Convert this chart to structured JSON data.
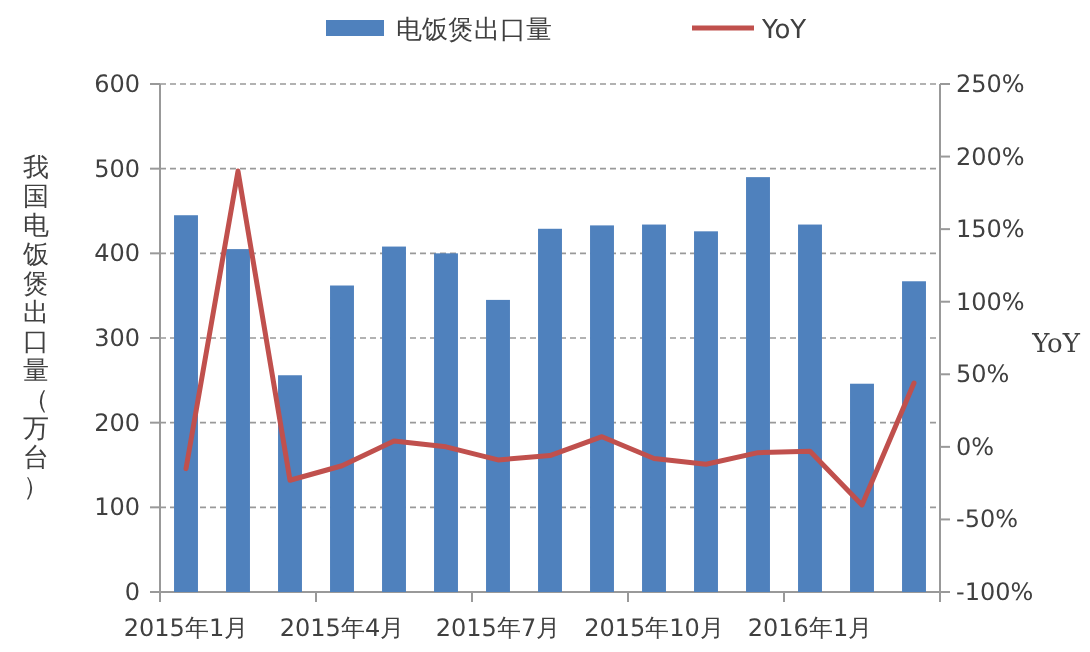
{
  "chart_data": {
    "type": "bar",
    "categories": [
      "2015年1月",
      null,
      null,
      "2015年4月",
      null,
      null,
      "2015年7月",
      null,
      null,
      "2015年10月",
      null,
      null,
      "2016年1月",
      null,
      null
    ],
    "series": [
      {
        "name": "电饭煲出口量",
        "color": "#4f81bd",
        "values": [
          445,
          405,
          256,
          362,
          408,
          400,
          345,
          429,
          433,
          434,
          426,
          490,
          434,
          246,
          367
        ]
      },
      {
        "name": "YoY",
        "type": "line",
        "axis": "y2",
        "color": "#c0504d",
        "values": [
          -15,
          190,
          -23,
          -13,
          4,
          0,
          -9,
          -6,
          7,
          -8,
          -12,
          -4,
          -3,
          -40,
          44
        ]
      }
    ],
    "ylabel": "我国电饭煲出口量（万台）",
    "y2label": "YoY",
    "ylim": [
      0,
      600
    ],
    "yticks": [
      0,
      100,
      200,
      300,
      400,
      500,
      600
    ],
    "y2lim": [
      -100,
      250
    ],
    "y2ticks": [
      {
        "value": -100,
        "label": "-100%"
      },
      {
        "value": -50,
        "label": "-50%"
      },
      {
        "value": 0,
        "label": "0%"
      },
      {
        "value": 50,
        "label": "50%"
      },
      {
        "value": 100,
        "label": "100%"
      },
      {
        "value": 150,
        "label": "150%"
      },
      {
        "value": 200,
        "label": "200%"
      },
      {
        "value": 250,
        "label": "250%"
      }
    ],
    "grid": "y",
    "legend": "top"
  }
}
